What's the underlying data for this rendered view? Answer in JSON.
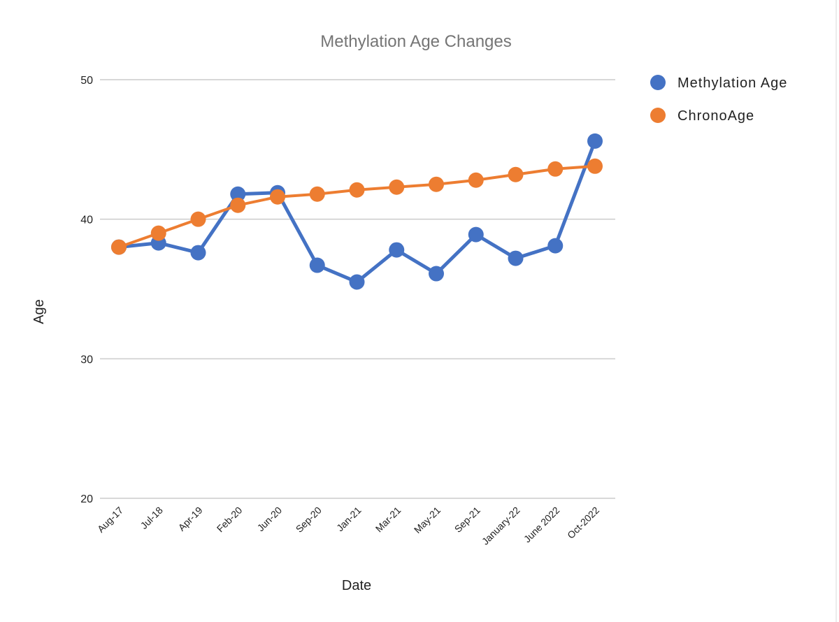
{
  "chart_data": {
    "type": "line",
    "title": "Methylation Age Changes",
    "xlabel": "Date",
    "ylabel": "Age",
    "categories": [
      "Aug-17",
      "Jul-18",
      "Apr-19",
      "Feb-20",
      "Jun-20",
      "Sep-20",
      "Jan-21",
      "Mar-21",
      "May-21",
      "Sep-21",
      "January-22",
      "June 2022",
      "Oct-2022"
    ],
    "yticks": [
      "20",
      "30",
      "40",
      "50"
    ],
    "ylim": [
      20,
      50
    ],
    "grid": true,
    "legend_position": "right",
    "series": [
      {
        "name": "Methylation Age",
        "color": "#4472C4",
        "values": [
          38.0,
          38.3,
          37.6,
          41.8,
          41.9,
          36.7,
          35.5,
          37.8,
          36.1,
          38.9,
          37.2,
          38.1,
          45.6
        ]
      },
      {
        "name": "ChronoAge",
        "color": "#ED7D31",
        "values": [
          38.0,
          39.0,
          40.0,
          41.0,
          41.6,
          41.8,
          42.1,
          42.3,
          42.5,
          42.8,
          43.2,
          43.6,
          43.8
        ]
      }
    ]
  }
}
